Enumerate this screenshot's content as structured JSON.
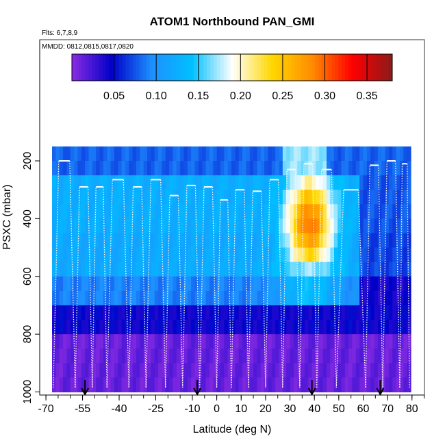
{
  "chart_data": {
    "type": "heatmap",
    "title": "ATOM1 Northbound PAN_GMI",
    "annotations": [
      "Flts: 6,7,8,9",
      "MMDD: 0812,0815,0817,0820"
    ],
    "xlabel": "Latitude (deg N)",
    "ylabel": "PSXC (mbar)",
    "xlim": [
      -70,
      85
    ],
    "ylim": [
      1000,
      100
    ],
    "x_ticks": [
      -70,
      -55,
      -40,
      -25,
      -10,
      0,
      10,
      20,
      30,
      40,
      50,
      60,
      70,
      80
    ],
    "x_tick_labels": [
      "-70",
      "-55",
      "-40",
      "-25",
      "-10",
      "0",
      "10",
      "20",
      "30",
      "40",
      "50",
      "60",
      "70",
      "80"
    ],
    "y_ticks": [
      200,
      400,
      600,
      800,
      1000
    ],
    "y_tick_labels": [
      "200",
      "400",
      "600",
      "800",
      "1000"
    ],
    "colorbar": {
      "min": 0.0,
      "max": 0.38,
      "ticks": [
        0.05,
        0.1,
        0.15,
        0.2,
        0.25,
        0.3,
        0.35
      ],
      "tick_labels": [
        "0.05",
        "0.10",
        "0.15",
        "0.20",
        "0.25",
        "0.30",
        "0.35"
      ],
      "colors": [
        "#8a2be2",
        "#0000c8",
        "#1e90ff",
        "#00bfff",
        "#ffffff",
        "#ffd700",
        "#ff8c00",
        "#ff0000",
        "#8b1a1a"
      ]
    },
    "pressure_levels": [
      175,
      225,
      275,
      325,
      375,
      425,
      475,
      525,
      575,
      625,
      675,
      725,
      775,
      825,
      875,
      925,
      975
    ],
    "lat_range": [
      -67.5,
      79.5
    ],
    "grid": false,
    "flight_track_color": "#ffffff",
    "profile_arrows_lat": [
      -54,
      -8,
      39,
      67
    ]
  }
}
